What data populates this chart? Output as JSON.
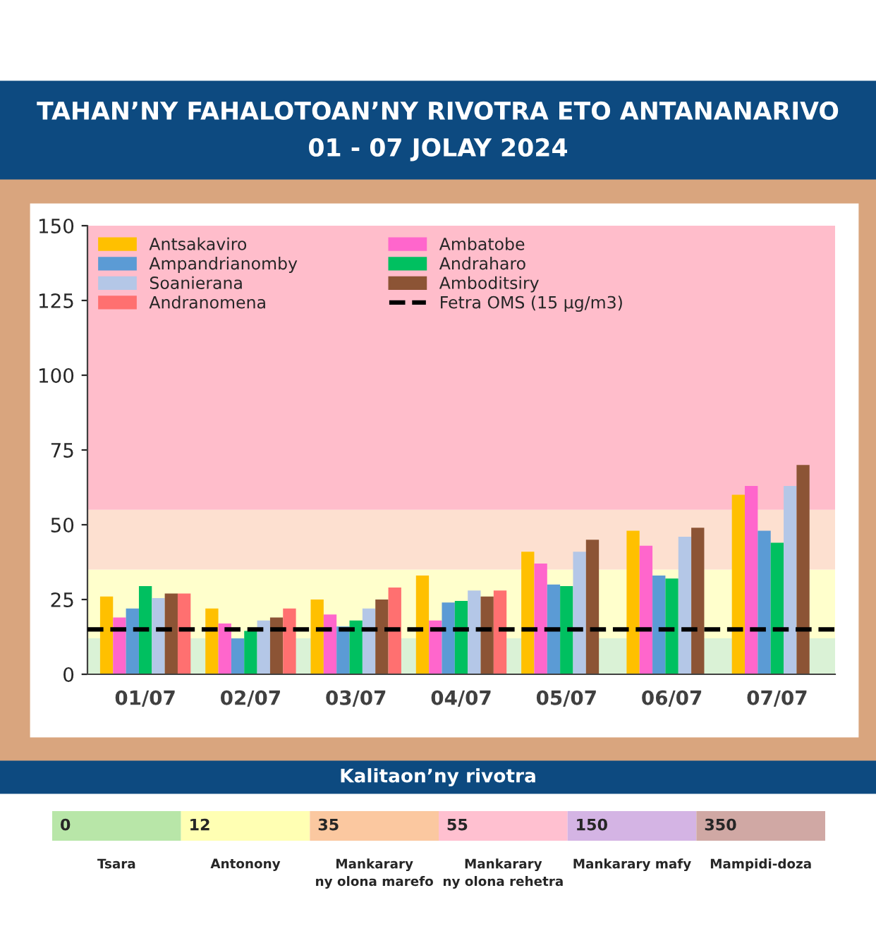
{
  "chart_data": [
    {
      "type": "bar",
      "title": "TAHAN’NY FAHALOTOAN’NY RIVOTRA ETO ANTANANARIVO",
      "subtitle": "01 - 07 JOLAY 2024",
      "categories": [
        "01/07",
        "02/07",
        "03/07",
        "04/07",
        "05/07",
        "06/07",
        "07/07"
      ],
      "series": [
        {
          "name": "Antsakaviro",
          "color": "#ffc000",
          "values": [
            26,
            22,
            25,
            33,
            41,
            48,
            60
          ]
        },
        {
          "name": "Ambatobe",
          "color": "#ff66cc",
          "values": [
            19,
            17,
            20,
            18,
            37,
            43,
            63
          ]
        },
        {
          "name": "Ampandrianomby",
          "color": "#5b9bd5",
          "values": [
            22,
            12,
            16,
            24,
            30,
            33,
            48
          ]
        },
        {
          "name": "Andraharo",
          "color": "#00c060",
          "values": [
            29.5,
            14.5,
            18,
            24.5,
            29.5,
            32,
            44
          ]
        },
        {
          "name": "Soanierana",
          "color": "#b4c7e7",
          "values": [
            25.5,
            18,
            22,
            28,
            41,
            46,
            63
          ]
        },
        {
          "name": "Amboditsiry",
          "color": "#8c5435",
          "values": [
            27,
            19,
            25,
            26,
            45,
            49,
            70
          ]
        },
        {
          "name": "Andranomena",
          "color": "#ff7070",
          "values": [
            27,
            22,
            29,
            28,
            null,
            null,
            null
          ]
        }
      ],
      "ylim": [
        0,
        150
      ],
      "yticks": [
        0,
        25,
        50,
        75,
        100,
        125,
        150
      ],
      "bands": [
        {
          "axis": "y",
          "from": 0,
          "to": 12,
          "color": "#daf2d6"
        },
        {
          "axis": "y",
          "from": 12,
          "to": 35,
          "color": "#ffffcc"
        },
        {
          "axis": "y",
          "from": 35,
          "to": 55,
          "color": "#fde0d0"
        },
        {
          "axis": "y",
          "from": 55,
          "to": 150,
          "color": "#ffbdcb"
        }
      ],
      "ref_lines": [
        {
          "axis": "y",
          "value": 15,
          "label": "Fetra OMS (15 µg/m3)",
          "color": "#000000",
          "line_style": "dashed"
        }
      ],
      "legend": "top left",
      "grid": false
    },
    {
      "type": "other",
      "title": "Kalitaon’ny rivotra",
      "categories": [
        "Tsara",
        "Antonony",
        "Mankarary\nny olona marefo",
        "Mankarary\nny olona rehetra",
        "Mankarary mafy",
        "Mampidi-doza"
      ],
      "values": [
        0,
        12,
        35,
        55,
        150,
        350
      ],
      "data_labels": true,
      "colors": [
        "#b8e6a8",
        "#ffffb3",
        "#fbc8a0",
        "#ffc0d0",
        "#d4b4e4",
        "#d0a8a4"
      ]
    }
  ]
}
